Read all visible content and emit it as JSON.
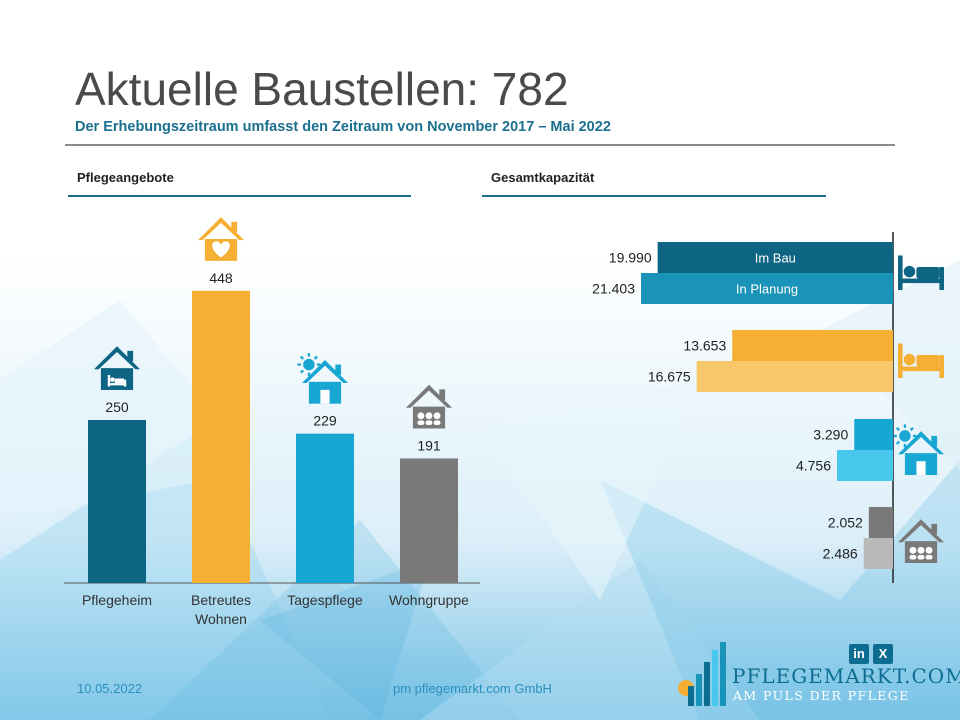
{
  "header": {
    "title": "Aktuelle Baustellen: 782",
    "subtitle": "Der Erhebungszeitraum umfasst den Zeitraum  von November 2017 – Mai 2022"
  },
  "sections": {
    "left": "Pflegeangebote",
    "right": "Gesamtkapazität"
  },
  "footer": {
    "date": "10.05.2022",
    "company": "pm pflegemarkt.com GmbH"
  },
  "logo": {
    "name": "PFLEGEMARKT.COM",
    "tagline": "AM PULS DER PFLEGE",
    "social": [
      "in",
      "X"
    ]
  },
  "colors": {
    "teal_dark": "#0e6583",
    "orange": "#f5b034",
    "orange_light": "#f8c76a",
    "cyan": "#18a6d2",
    "cyan_light": "#47c8ec",
    "gray": "#797979",
    "gray_light": "#b9b9b9",
    "teal_mid": "#1a93b8",
    "accent": "#1d6e8c"
  },
  "chart_data": [
    {
      "type": "bar",
      "title": "Pflegeangebote",
      "categories": [
        "Pflegeheim",
        "Betreutes Wohnen",
        "Tagespflege",
        "Wohngruppe"
      ],
      "values": [
        250,
        448,
        229,
        191
      ],
      "value_labels": [
        "250",
        "448",
        "229",
        "191"
      ],
      "icons": [
        "nursing-home-icon",
        "house-heart-icon",
        "house-sun-icon",
        "house-group-icon"
      ],
      "bar_colors": [
        "#0e6583",
        "#f5b034",
        "#18a6d2",
        "#797979"
      ],
      "ylim": [
        0,
        480
      ]
    },
    {
      "type": "bar",
      "orientation": "horizontal",
      "title": "Gesamtkapazität",
      "series": [
        {
          "name": "Im Bau",
          "values": [
            19990,
            13653,
            3290,
            2052
          ],
          "labels": [
            "19.990",
            "13.653",
            "3.290",
            "2.052"
          ]
        },
        {
          "name": "In Planung",
          "values": [
            21403,
            16675,
            4756,
            2486
          ],
          "labels": [
            "21.403",
            "16.675",
            "4.756",
            "2.486"
          ]
        }
      ],
      "group_icons": [
        "bed-icon",
        "bed-icon",
        "house-sun-icon",
        "house-group-icon"
      ],
      "group_colors": [
        [
          "#0e6583",
          "#1a93b8"
        ],
        [
          "#f5b034",
          "#f8c76a"
        ],
        [
          "#18a6d2",
          "#47c8ec"
        ],
        [
          "#797979",
          "#b9b9b9"
        ]
      ],
      "xlim": [
        0,
        21403
      ]
    }
  ]
}
